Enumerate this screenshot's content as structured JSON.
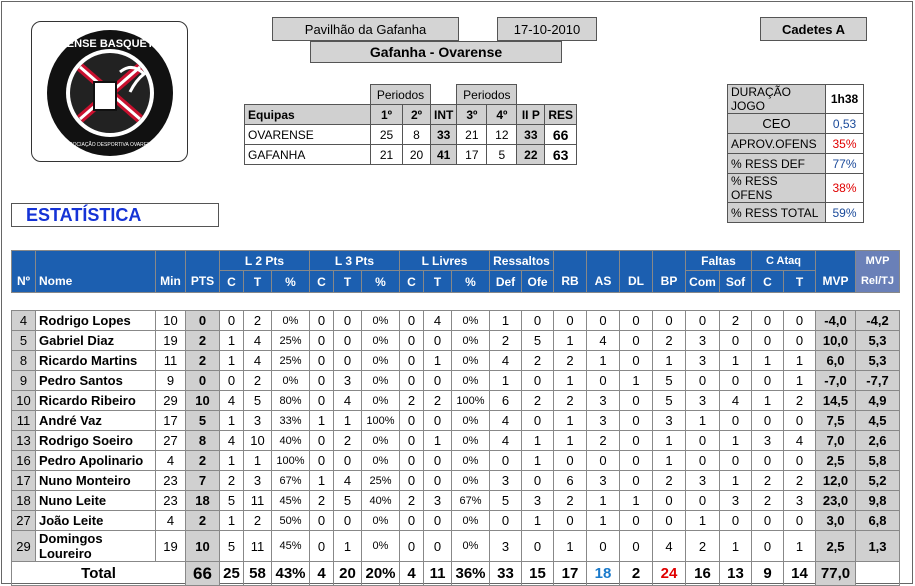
{
  "header": {
    "venue": "Pavilhão da Gafanha",
    "date": "17-10-2010",
    "category": "Cadetes A",
    "matchup": "Gafanha - Ovarense"
  },
  "logo": {
    "text_top": "OVARENSE BASQUETEBOL",
    "text_bottom": "ASSOCIAÇÃO DESPORTIVA OVARENSE"
  },
  "score": {
    "periodos_label": "Periodos",
    "cols": [
      "Equipas",
      "1º",
      "2º",
      "INT",
      "3º",
      "4º",
      "II P",
      "RES"
    ],
    "rows": [
      {
        "team": "OVARENSE",
        "p1": "25",
        "p2": "8",
        "int": "33",
        "p3": "21",
        "p4": "12",
        "iip": "33",
        "res": "66"
      },
      {
        "team": "GAFANHA",
        "p1": "21",
        "p2": "20",
        "int": "41",
        "p3": "17",
        "p4": "5",
        "iip": "22",
        "res": "63"
      }
    ]
  },
  "info": [
    {
      "label": "DURAÇÃO JOGO",
      "value": "1h38",
      "color": "#000000"
    },
    {
      "label": "CEO",
      "value": "0,53",
      "color": "#1a4a9a"
    },
    {
      "label": "APROV.OFENS",
      "value": "35%",
      "color": "#e00000"
    },
    {
      "label": "% RESS DEF",
      "value": "77%",
      "color": "#1a4a9a"
    },
    {
      "label": "% RESS OFENS",
      "value": "38%",
      "color": "#e00000"
    },
    {
      "label": "% RESS TOTAL",
      "value": "59%",
      "color": "#1a4a9a"
    }
  ],
  "section_title": "ESTATÍSTICA",
  "stats": {
    "groups": {
      "l2": "L 2 Pts",
      "l3": "L 3 Pts",
      "ll": "L Livres",
      "ress": "Ressaltos",
      "faltas": "Faltas",
      "cataq": "C Ataq",
      "mvp": "MVP"
    },
    "cols": [
      "Nº",
      "Nome",
      "Min",
      "PTS",
      "C",
      "T",
      "%",
      "C",
      "T",
      "%",
      "C",
      "T",
      "%",
      "Def",
      "Ofe",
      "RB",
      "AS",
      "DL",
      "BP",
      "Com",
      "Sof",
      "C",
      "T",
      "MVP",
      "Rel/TJ"
    ],
    "players": [
      [
        "4",
        "Rodrigo Lopes",
        "10",
        "0",
        "0",
        "2",
        "0%",
        "0",
        "0",
        "0%",
        "0",
        "4",
        "0%",
        "1",
        "0",
        "0",
        "0",
        "0",
        "0",
        "0",
        "2",
        "0",
        "0",
        "-4,0",
        "-4,2"
      ],
      [
        "5",
        "Gabriel Diaz",
        "19",
        "2",
        "1",
        "4",
        "25%",
        "0",
        "0",
        "0%",
        "0",
        "0",
        "0%",
        "2",
        "5",
        "1",
        "4",
        "0",
        "2",
        "3",
        "0",
        "0",
        "0",
        "10,0",
        "5,3"
      ],
      [
        "8",
        "Ricardo Martins",
        "11",
        "2",
        "1",
        "4",
        "25%",
        "0",
        "0",
        "0%",
        "0",
        "1",
        "0%",
        "4",
        "2",
        "2",
        "1",
        "0",
        "1",
        "3",
        "1",
        "1",
        "1",
        "6,0",
        "5,3"
      ],
      [
        "9",
        "Pedro Santos",
        "9",
        "0",
        "0",
        "2",
        "0%",
        "0",
        "3",
        "0%",
        "0",
        "0",
        "0%",
        "1",
        "0",
        "1",
        "0",
        "1",
        "5",
        "0",
        "0",
        "0",
        "1",
        "-7,0",
        "-7,7"
      ],
      [
        "10",
        "Ricardo Ribeiro",
        "29",
        "10",
        "4",
        "5",
        "80%",
        "0",
        "4",
        "0%",
        "2",
        "2",
        "100%",
        "6",
        "2",
        "2",
        "3",
        "0",
        "5",
        "3",
        "4",
        "1",
        "2",
        "14,5",
        "4,9"
      ],
      [
        "11",
        "André Vaz",
        "17",
        "5",
        "1",
        "3",
        "33%",
        "1",
        "1",
        "100%",
        "0",
        "0",
        "0%",
        "4",
        "0",
        "1",
        "3",
        "0",
        "3",
        "1",
        "0",
        "0",
        "0",
        "7,5",
        "4,5"
      ],
      [
        "13",
        "Rodrigo Soeiro",
        "27",
        "8",
        "4",
        "10",
        "40%",
        "0",
        "2",
        "0%",
        "0",
        "1",
        "0%",
        "4",
        "1",
        "1",
        "2",
        "0",
        "1",
        "0",
        "1",
        "3",
        "4",
        "7,0",
        "2,6"
      ],
      [
        "16",
        "Pedro Apolinario",
        "4",
        "2",
        "1",
        "1",
        "100%",
        "0",
        "0",
        "0%",
        "0",
        "0",
        "0%",
        "0",
        "1",
        "0",
        "0",
        "0",
        "1",
        "0",
        "0",
        "0",
        "0",
        "2,5",
        "5,8"
      ],
      [
        "17",
        "Nuno Monteiro",
        "23",
        "7",
        "2",
        "3",
        "67%",
        "1",
        "4",
        "25%",
        "0",
        "0",
        "0%",
        "3",
        "0",
        "6",
        "3",
        "0",
        "2",
        "3",
        "1",
        "2",
        "2",
        "12,0",
        "5,2"
      ],
      [
        "18",
        "Nuno Leite",
        "23",
        "18",
        "5",
        "11",
        "45%",
        "2",
        "5",
        "40%",
        "2",
        "3",
        "67%",
        "5",
        "3",
        "2",
        "1",
        "1",
        "0",
        "0",
        "3",
        "2",
        "3",
        "23,0",
        "9,8"
      ],
      [
        "27",
        "João Leite",
        "4",
        "2",
        "1",
        "2",
        "50%",
        "0",
        "0",
        "0%",
        "0",
        "0",
        "0%",
        "0",
        "1",
        "0",
        "1",
        "0",
        "0",
        "1",
        "0",
        "0",
        "0",
        "3,0",
        "6,8"
      ],
      [
        "29",
        "Domingos Loureiro",
        "19",
        "10",
        "5",
        "11",
        "45%",
        "0",
        "1",
        "0%",
        "0",
        "0",
        "0%",
        "3",
        "0",
        "1",
        "0",
        "0",
        "4",
        "2",
        "1",
        "0",
        "1",
        "2,5",
        "1,3"
      ]
    ],
    "total": {
      "label": "Total",
      "values": [
        "66",
        "25",
        "58",
        "43%",
        "4",
        "20",
        "20%",
        "4",
        "11",
        "36%",
        "33",
        "15",
        "17",
        "18",
        "2",
        "24",
        "16",
        "13",
        "9",
        "14",
        "77,0"
      ]
    }
  }
}
